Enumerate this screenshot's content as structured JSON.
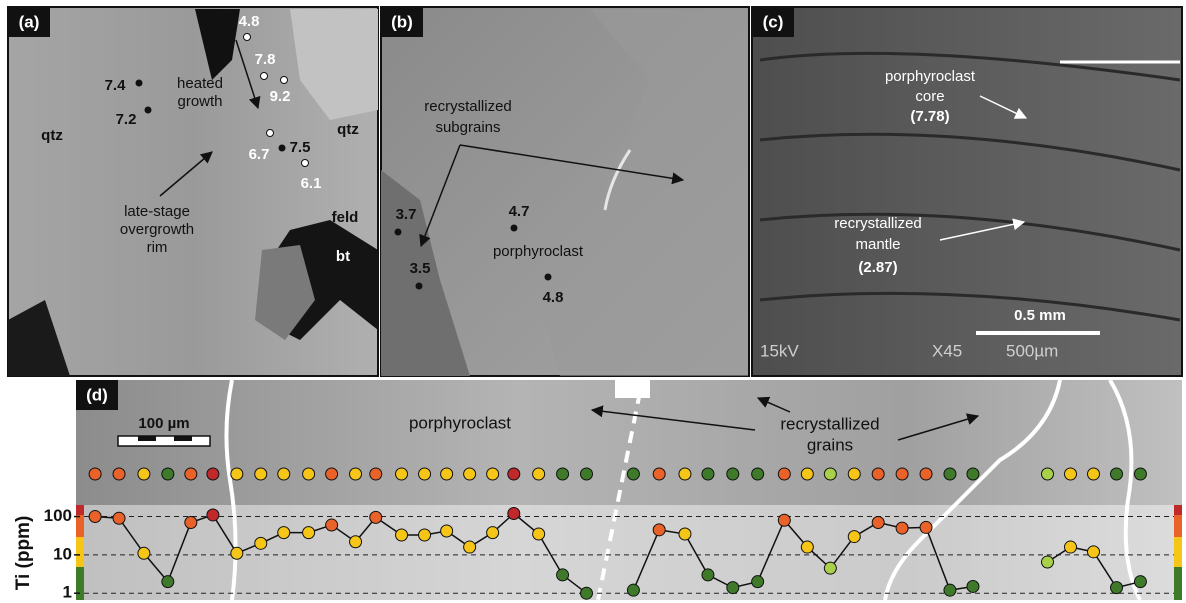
{
  "panels": {
    "a": {
      "label": "(a)",
      "points": [
        4.8,
        7.8,
        9.2,
        7.4,
        7.2,
        6.7,
        7.5,
        6.1
      ],
      "heated_growth": [
        "heated",
        "growth"
      ],
      "overgrowth": [
        "late-stage",
        "overgrowth",
        "rim"
      ],
      "minerals": [
        "qtz",
        "qtz",
        "feld",
        "bt"
      ]
    },
    "b": {
      "label": "(b)",
      "points": [
        3.7,
        4.7,
        3.5,
        4.8
      ],
      "subgrains": [
        "recrystallized",
        "subgrains"
      ],
      "porphyroclast": "porphyroclast"
    },
    "c": {
      "label": "(c)",
      "core": [
        "porphyroclast",
        "core"
      ],
      "core_value": "(7.78)",
      "mantle": [
        "recrystallized",
        "mantle"
      ],
      "mantle_value": "(2.87)",
      "scale": "0.5 mm",
      "instrument": [
        "15kV",
        "X45",
        "500µm"
      ]
    },
    "d": {
      "label": "(d)",
      "porphyroclast": "porphyroclast",
      "grains": [
        "recrystallized",
        "grains"
      ],
      "scale": "100 µm"
    }
  },
  "chart_data": {
    "type": "line",
    "y_label": "Ti (ppm)",
    "log_y": true,
    "grid": true,
    "xlim": [
      -11,
      1179
    ],
    "ylim": [
      0.75,
      200
    ],
    "yticks": [
      1,
      10,
      100
    ],
    "x": [
      0,
      26,
      53,
      79,
      104,
      128,
      154,
      180,
      205,
      232,
      257,
      283,
      305,
      333,
      358,
      382,
      407,
      432,
      455,
      482,
      508,
      534,
      560,
      585,
      613,
      641,
      666,
      693,
      720,
      749,
      774,
      799,
      825,
      851,
      877,
      903,
      929,
      954,
      995,
      1035,
      1060,
      1085,
      1110,
      1136
    ],
    "series": [
      {
        "color": "#111111",
        "values": [
          100,
          90,
          11,
          2,
          70,
          110,
          11,
          20,
          38,
          38,
          60,
          22,
          95,
          33,
          33,
          42,
          16,
          38,
          120,
          35,
          3,
          1,
          null,
          1.2,
          45,
          35,
          3,
          1.4,
          2,
          80,
          16,
          4.5,
          30,
          70,
          50,
          52,
          1.2,
          1.5,
          null,
          6.5,
          16,
          12,
          1.4,
          2
        ],
        "colors": [
          "#e8622a",
          "#e8622a",
          "#f5c518",
          "#3f7a2a",
          "#e8622a",
          "#c0282a",
          "#f5c518",
          "#f5c518",
          "#f5c518",
          "#f5c518",
          "#e8622a",
          "#f5c518",
          "#e8622a",
          "#f5c518",
          "#f5c518",
          "#f5c518",
          "#f5c518",
          "#f5c518",
          "#c0282a",
          "#f5c518",
          "#3f7a2a",
          "#3f7a2a",
          null,
          "#3f7a2a",
          "#e8622a",
          "#f5c518",
          "#3f7a2a",
          "#3f7a2a",
          "#3f7a2a",
          "#e8622a",
          "#f5c518",
          "#a8d04a",
          "#f5c518",
          "#e8622a",
          "#e8622a",
          "#e8622a",
          "#3f7a2a",
          "#3f7a2a",
          null,
          "#a8d04a",
          "#f5c518",
          "#f5c518",
          "#3f7a2a",
          "#3f7a2a"
        ]
      }
    ]
  }
}
